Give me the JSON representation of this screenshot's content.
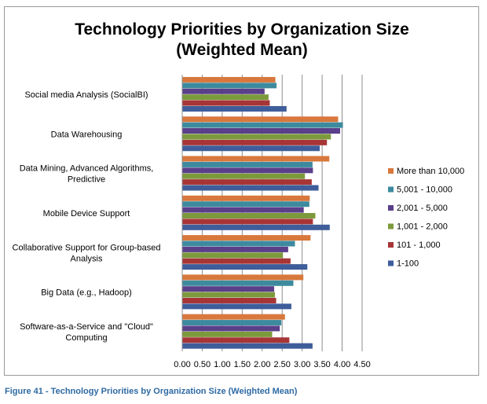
{
  "chart_data": {
    "type": "bar",
    "orientation": "horizontal",
    "title_lines": [
      "Technology Priorities by Organization Size",
      "(Weighted Mean)"
    ],
    "categories": [
      [
        "Social media Analysis (SocialBI)"
      ],
      [
        "Data Warehousing"
      ],
      [
        "Data Mining, Advanced Algorithms,",
        "Predictive"
      ],
      [
        "Mobile Device Support"
      ],
      [
        "Collaborative Support for Group-based",
        "Analysis"
      ],
      [
        "Big Data (e.g., Hadoop)"
      ],
      [
        "Software-as-a-Service and \"Cloud\"",
        "Computing"
      ]
    ],
    "series": [
      {
        "name": "More than 10,000",
        "color": "#d8783c",
        "values": [
          2.33,
          3.9,
          3.68,
          3.19,
          3.21,
          3.03,
          2.57
        ]
      },
      {
        "name": "5,001 - 10,000",
        "color": "#3d8a9e",
        "values": [
          2.36,
          4.02,
          3.26,
          3.18,
          2.82,
          2.78,
          2.48
        ]
      },
      {
        "name": "2,001 - 5,000",
        "color": "#5a3f8a",
        "values": [
          2.06,
          3.95,
          3.27,
          3.04,
          2.65,
          2.3,
          2.44
        ]
      },
      {
        "name": "1,001 - 2,000",
        "color": "#7c9a3c",
        "values": [
          2.16,
          3.72,
          3.07,
          3.33,
          2.52,
          2.32,
          2.25
        ]
      },
      {
        "name": "101 - 1,000",
        "color": "#a73536",
        "values": [
          2.19,
          3.62,
          3.24,
          3.27,
          2.71,
          2.35,
          2.68
        ]
      },
      {
        "name": "1-100",
        "color": "#3e5d9a",
        "values": [
          2.61,
          3.44,
          3.41,
          3.69,
          3.13,
          2.73,
          3.26
        ]
      }
    ],
    "legend_order": [
      "More than 10,000",
      "5,001 - 10,000",
      "2,001 - 5,000",
      "1,001 - 2,000",
      "101 - 1,000",
      "1-100"
    ],
    "x_ticks": [
      "0.00",
      "0.50",
      "1.00",
      "1.50",
      "2.00",
      "2.50",
      "3.00",
      "3.50",
      "4.00",
      "4.50"
    ],
    "xlim": [
      0,
      4.5
    ],
    "grid": true,
    "legend_position": "right"
  },
  "caption": "Figure 41 - Technology Priorities by Organization Size (Weighted Mean)"
}
